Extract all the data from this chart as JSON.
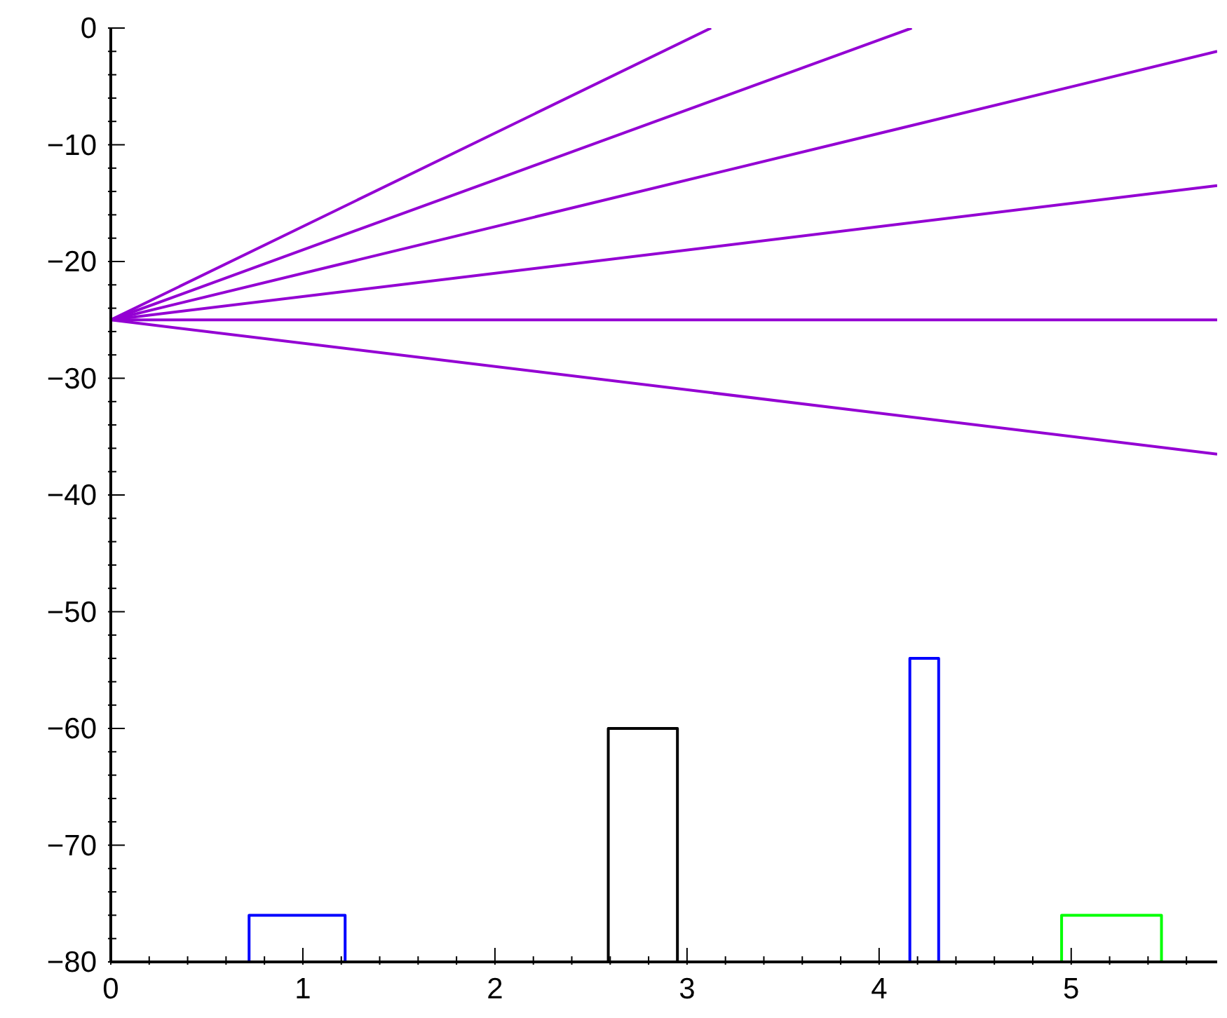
{
  "chart_data": {
    "type": "line",
    "xlim": [
      0,
      5.76
    ],
    "ylim": [
      -80,
      0
    ],
    "xticks": [
      0,
      {
        "value": 0.2,
        "label": null
      },
      {
        "value": 0.4,
        "label": null
      },
      {
        "value": 0.6,
        "label": null
      },
      {
        "value": 0.8,
        "label": null
      },
      1,
      {
        "value": 1.2,
        "label": null
      },
      {
        "value": 1.4,
        "label": null
      },
      {
        "value": 1.6,
        "label": null
      },
      {
        "value": 1.8,
        "label": null
      },
      2,
      {
        "value": 2.2,
        "label": null
      },
      {
        "value": 2.4,
        "label": null
      },
      {
        "value": 2.6,
        "label": null
      },
      {
        "value": 2.8,
        "label": null
      },
      3,
      {
        "value": 3.2,
        "label": null
      },
      {
        "value": 3.4,
        "label": null
      },
      {
        "value": 3.6,
        "label": null
      },
      {
        "value": 3.8,
        "label": null
      },
      4,
      {
        "value": 4.2,
        "label": null
      },
      {
        "value": 4.4,
        "label": null
      },
      {
        "value": 4.6,
        "label": null
      },
      {
        "value": 4.8,
        "label": null
      },
      5,
      {
        "value": 5.2,
        "label": null
      },
      {
        "value": 5.4,
        "label": null
      },
      {
        "value": 5.6,
        "label": null
      }
    ],
    "yticks": [
      -80,
      {
        "value": -78,
        "label": null
      },
      {
        "value": -76,
        "label": null
      },
      {
        "value": -74,
        "label": null
      },
      {
        "value": -72,
        "label": null
      },
      -70,
      {
        "value": -68,
        "label": null
      },
      {
        "value": -66,
        "label": null
      },
      {
        "value": -64,
        "label": null
      },
      {
        "value": -62,
        "label": null
      },
      -60,
      {
        "value": -58,
        "label": null
      },
      {
        "value": -56,
        "label": null
      },
      {
        "value": -54,
        "label": null
      },
      {
        "value": -52,
        "label": null
      },
      -50,
      {
        "value": -48,
        "label": null
      },
      {
        "value": -46,
        "label": null
      },
      {
        "value": -44,
        "label": null
      },
      {
        "value": -42,
        "label": null
      },
      -40,
      {
        "value": -38,
        "label": null
      },
      {
        "value": -36,
        "label": null
      },
      {
        "value": -34,
        "label": null
      },
      {
        "value": -32,
        "label": null
      },
      -30,
      {
        "value": -28,
        "label": null
      },
      {
        "value": -26,
        "label": null
      },
      {
        "value": -24,
        "label": null
      },
      {
        "value": -22,
        "label": null
      },
      -20,
      {
        "value": -18,
        "label": null
      },
      {
        "value": -16,
        "label": null
      },
      {
        "value": -14,
        "label": null
      },
      {
        "value": -12,
        "label": null
      },
      -10,
      {
        "value": -8,
        "label": null
      },
      {
        "value": -6,
        "label": null
      },
      {
        "value": -4,
        "label": null
      },
      {
        "value": -2,
        "label": null
      },
      0
    ],
    "marker": "none",
    "line_style": "solid",
    "series": [
      {
        "color": "#9400d3",
        "x": [
          0,
          3.125
        ],
        "values": [
          -25,
          0
        ]
      },
      {
        "color": "#9400d3",
        "x": [
          0,
          4.17
        ],
        "values": [
          -25,
          0
        ]
      },
      {
        "color": "#9400d3",
        "x": [
          0,
          5.76
        ],
        "values": [
          -25,
          -2
        ]
      },
      {
        "color": "#9400d3",
        "x": [
          0,
          5.76
        ],
        "values": [
          -25,
          -13.5
        ]
      },
      {
        "color": "#9400d3",
        "x": [
          0,
          5.76
        ],
        "values": [
          -25,
          -25
        ]
      },
      {
        "color": "#9400d3",
        "x": [
          0,
          5.76
        ],
        "values": [
          -25,
          -36.5
        ]
      },
      {
        "color": "#0000ff",
        "x": [
          0.72,
          0.72,
          1.22,
          1.22
        ],
        "values": [
          -80,
          -76,
          -76,
          -80
        ]
      },
      {
        "color": "#000000",
        "x": [
          2.59,
          2.59,
          2.95,
          2.95
        ],
        "values": [
          -80,
          -60,
          -60,
          -80
        ]
      },
      {
        "color": "#0000ff",
        "x": [
          4.16,
          4.16,
          4.31,
          4.31
        ],
        "values": [
          -80,
          -54,
          -54,
          -80
        ]
      },
      {
        "color": "#00ff00",
        "x": [
          4.95,
          4.95,
          5.47,
          5.47
        ],
        "values": [
          -80,
          -76,
          -76,
          -80
        ]
      }
    ]
  }
}
